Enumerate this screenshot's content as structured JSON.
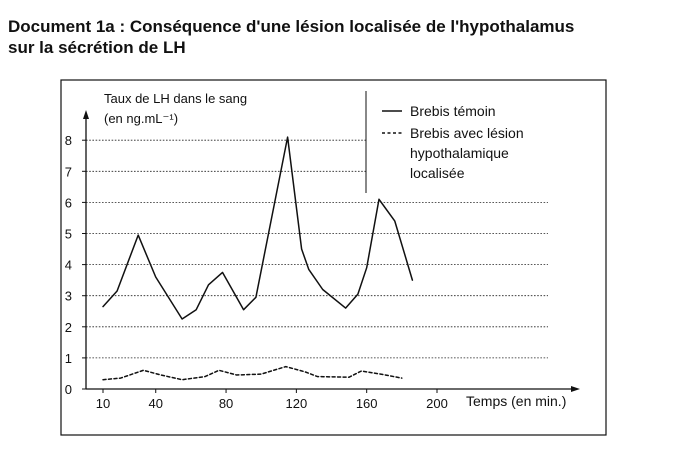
{
  "document": {
    "title_line1": "Document 1a : Conséquence d'une lésion localisée de l'hypothalamus",
    "title_line2": "sur la sécrétion de LH"
  },
  "chart_data": {
    "type": "line",
    "ylabel_line1": "Taux de LH dans le sang",
    "ylabel_line2": "(en ng.mL⁻¹)",
    "xlabel": "Temps (en min.)",
    "xlim": [
      10,
      200
    ],
    "ylim": [
      0,
      8
    ],
    "x_ticks": [
      10,
      40,
      80,
      120,
      160,
      200
    ],
    "y_ticks": [
      0,
      1,
      2,
      3,
      4,
      5,
      6,
      7,
      8
    ],
    "grid": "horizontal dotted at each y tick",
    "legend_placement": "top-right",
    "series": [
      {
        "name": "Brebis témoin",
        "style": "solid",
        "color": "#111111",
        "points": [
          [
            10,
            2.65
          ],
          [
            18,
            3.15
          ],
          [
            30,
            4.95
          ],
          [
            40,
            3.6
          ],
          [
            55,
            2.25
          ],
          [
            63,
            2.55
          ],
          [
            70,
            3.35
          ],
          [
            78,
            3.75
          ],
          [
            90,
            2.55
          ],
          [
            97,
            2.95
          ],
          [
            115,
            8.1
          ],
          [
            123,
            4.5
          ],
          [
            127,
            3.85
          ],
          [
            135,
            3.2
          ],
          [
            148,
            2.6
          ],
          [
            155,
            3.05
          ],
          [
            160,
            3.9
          ],
          [
            167,
            6.1
          ],
          [
            176,
            5.4
          ],
          [
            186,
            3.5
          ]
        ]
      },
      {
        "name": "Brebis avec lésion hypothalamique localisée",
        "style": "dashed",
        "color": "#111111",
        "points": [
          [
            10,
            0.3
          ],
          [
            20,
            0.35
          ],
          [
            33,
            0.6
          ],
          [
            43,
            0.45
          ],
          [
            55,
            0.3
          ],
          [
            68,
            0.4
          ],
          [
            76,
            0.6
          ],
          [
            86,
            0.45
          ],
          [
            100,
            0.48
          ],
          [
            114,
            0.72
          ],
          [
            125,
            0.55
          ],
          [
            132,
            0.4
          ],
          [
            150,
            0.38
          ],
          [
            157,
            0.58
          ],
          [
            168,
            0.48
          ],
          [
            180,
            0.35
          ]
        ]
      }
    ],
    "legend": {
      "item1": "Brebis témoin",
      "item2_line1": "Brebis avec lésion",
      "item2_line2": "hypothalamique",
      "item2_line3": "localisée"
    }
  }
}
